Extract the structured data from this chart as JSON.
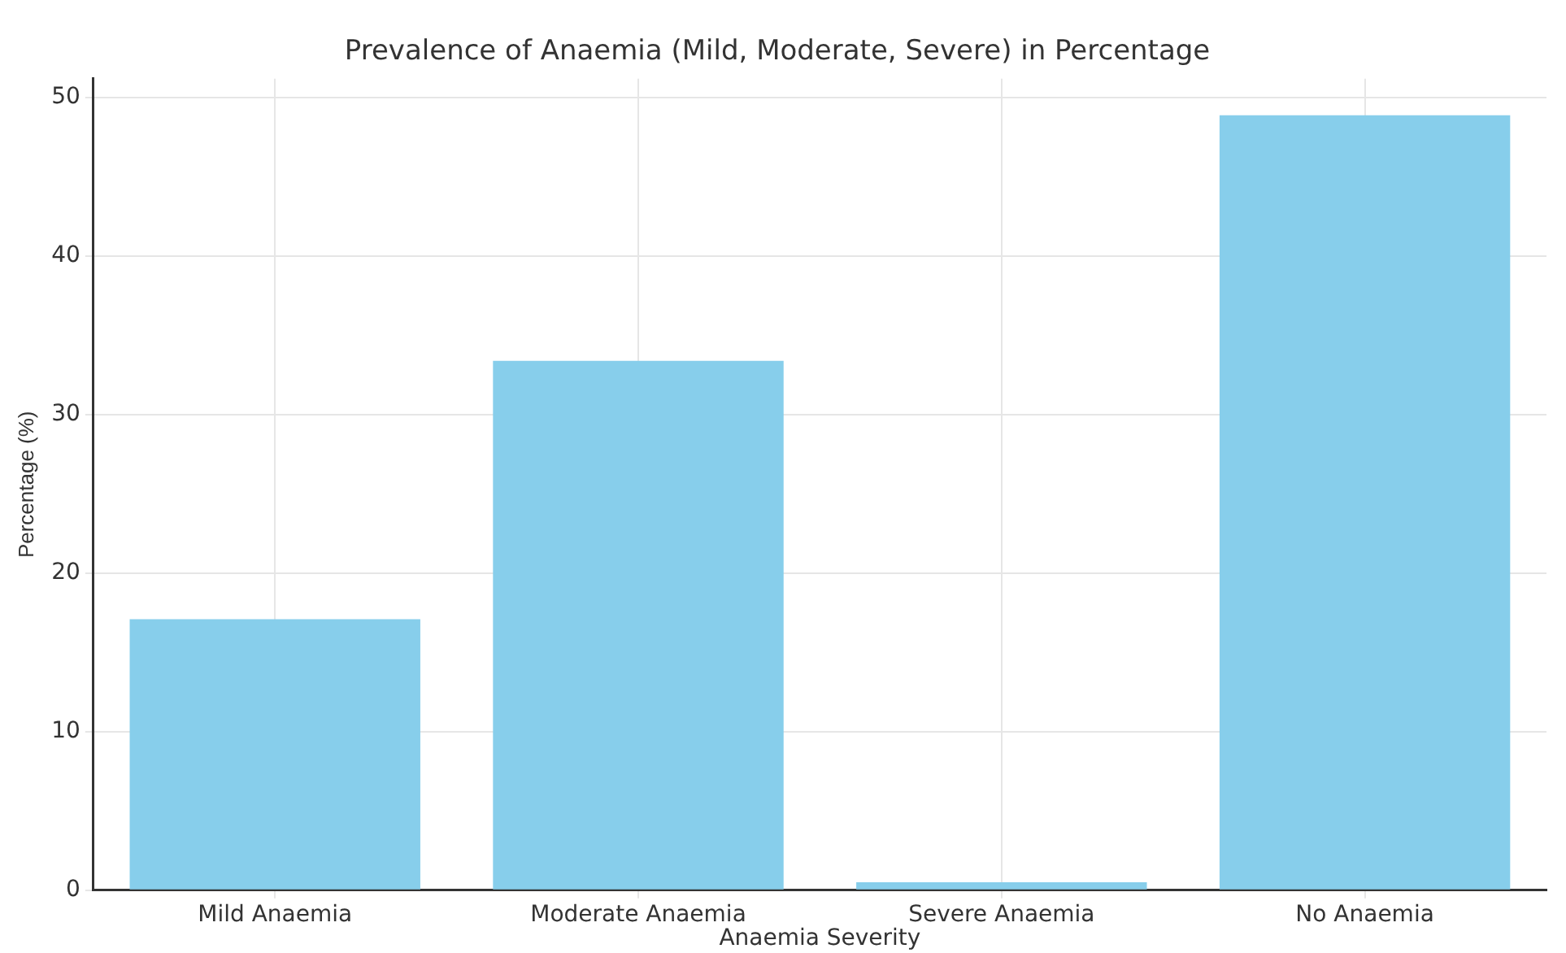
{
  "chart_data": {
    "type": "bar",
    "title": "Prevalence of Anaemia (Mild, Moderate, Severe) in Percentage",
    "xlabel": "Anaemia Severity",
    "ylabel": "Percentage (%)",
    "categories": [
      "Mild Anaemia",
      "Moderate Anaemia",
      "Severe Anaemia",
      "No Anaemia"
    ],
    "values": [
      17.1,
      33.4,
      0.5,
      48.9
    ],
    "color": "#87ceeb",
    "ylim": [
      0,
      51.2
    ],
    "yticks": [
      0,
      10,
      20,
      30,
      40,
      50
    ],
    "grid": true,
    "legend": false
  }
}
